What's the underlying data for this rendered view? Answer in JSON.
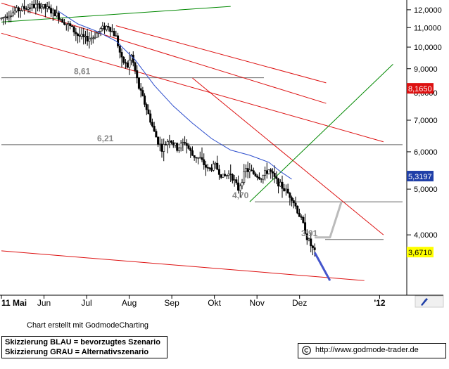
{
  "chart_data": {
    "type": "candlestick",
    "x_ticks": [
      "11 Mai",
      "Jun",
      "Jul",
      "Aug",
      "Sep",
      "Okt",
      "Nov",
      "Dez",
      "'12"
    ],
    "y_ticks": [
      "12,0000",
      "11,0000",
      "10,0000",
      "9,0000",
      "8,0000",
      "7,0000",
      "6,0000",
      "5,0000",
      "4,0000"
    ],
    "ylim": [
      3.0,
      12.5
    ],
    "y_scale": "log",
    "grid": false,
    "price_badges": [
      {
        "label": "8,1650",
        "value": 8.165,
        "color": "#dd1111",
        "text_color": "#ffffff"
      },
      {
        "label": "5,3197",
        "value": 5.3197,
        "color": "#1f3fa8",
        "text_color": "#ffffff"
      },
      {
        "label": "3,6710",
        "value": 3.671,
        "color": "#ffff00",
        "text_color": "#000000"
      }
    ],
    "horizontal_levels": [
      {
        "label": "8,61",
        "value": 8.61
      },
      {
        "label": "6,21",
        "value": 6.21
      },
      {
        "label": "4,70",
        "value": 4.7
      },
      {
        "label": "3,91",
        "value": 3.91
      }
    ],
    "series": [
      {
        "type": "candlestick",
        "points": [
          [
            0,
            11.5
          ],
          [
            4,
            11.75
          ],
          [
            8,
            11.95
          ],
          [
            12,
            12.1
          ],
          [
            16,
            12.2
          ],
          [
            20,
            12.25
          ],
          [
            24,
            12.05
          ],
          [
            28,
            11.8
          ],
          [
            32,
            11.4
          ],
          [
            36,
            11.05
          ],
          [
            40,
            10.6
          ],
          [
            44,
            10.4
          ],
          [
            48,
            10.5
          ],
          [
            52,
            10.9
          ],
          [
            56,
            11.1
          ],
          [
            60,
            10.5
          ],
          [
            63,
            9.4
          ],
          [
            66,
            9.1
          ],
          [
            68,
            9.6
          ],
          [
            70,
            8.9
          ],
          [
            72,
            8.2
          ],
          [
            74,
            7.8
          ],
          [
            76,
            7.4
          ],
          [
            78,
            7.0
          ],
          [
            80,
            6.6
          ],
          [
            82,
            6.3
          ],
          [
            84,
            6.1
          ],
          [
            88,
            6.4
          ],
          [
            92,
            6.1
          ],
          [
            96,
            6.3
          ],
          [
            100,
            5.9
          ],
          [
            104,
            5.8
          ],
          [
            108,
            5.5
          ],
          [
            112,
            5.6
          ],
          [
            116,
            5.3
          ],
          [
            120,
            5.4
          ],
          [
            124,
            5.0
          ],
          [
            128,
            5.5
          ],
          [
            132,
            5.4
          ],
          [
            136,
            5.3
          ],
          [
            140,
            5.5
          ],
          [
            144,
            5.2
          ],
          [
            148,
            5.0
          ],
          [
            152,
            4.8
          ],
          [
            154,
            4.6
          ],
          [
            156,
            4.4
          ],
          [
            158,
            4.2
          ],
          [
            160,
            3.95
          ],
          [
            162,
            3.8
          ],
          [
            164,
            3.67
          ]
        ]
      },
      {
        "name": "",
        "type": "line",
        "color": "#2b4ccc",
        "points": [
          [
            30,
            11.9
          ],
          [
            40,
            11.2
          ],
          [
            50,
            10.8
          ],
          [
            60,
            10.3
          ],
          [
            70,
            9.4
          ],
          [
            80,
            8.3
          ],
          [
            90,
            7.5
          ],
          [
            100,
            6.9
          ],
          [
            110,
            6.4
          ],
          [
            120,
            6.05
          ],
          [
            130,
            5.9
          ],
          [
            140,
            5.7
          ],
          [
            146,
            5.45
          ],
          [
            152,
            5.25
          ]
        ]
      }
    ],
    "trendlines": [
      {
        "color": "#008800",
        "points": [
          [
            0,
            11.3
          ],
          [
            120,
            12.2
          ]
        ]
      },
      {
        "color": "#dd1111",
        "points": [
          [
            0,
            12.4
          ],
          [
            170,
            7.6
          ]
        ]
      },
      {
        "color": "#dd1111",
        "points": [
          [
            60,
            11.1
          ],
          [
            170,
            8.4
          ]
        ]
      },
      {
        "color": "#dd1111",
        "points": [
          [
            0,
            10.7
          ],
          [
            200,
            6.3
          ]
        ]
      },
      {
        "color": "#dd1111",
        "points": [
          [
            100,
            8.6
          ],
          [
            200,
            4.0
          ]
        ]
      },
      {
        "color": "#dd1111",
        "points": [
          [
            0,
            3.7
          ],
          [
            190,
            3.2
          ]
        ]
      },
      {
        "color": "#008800",
        "points": [
          [
            130,
            4.7
          ],
          [
            205,
            9.2
          ]
        ]
      }
    ],
    "scenarios": [
      {
        "name": "Skizzierung BLAU = bevorzugtes Szenario",
        "color": "#4455cc",
        "points": [
          [
            164,
            3.67
          ],
          [
            172,
            3.2
          ]
        ]
      },
      {
        "name": "Skizzierung GRAU = Alternativszenario",
        "color": "#bbbbbb",
        "points": [
          [
            164,
            3.95
          ],
          [
            172,
            3.95
          ],
          [
            178,
            4.7
          ]
        ]
      }
    ]
  },
  "footer": {
    "credit": "Chart erstellt mit GodmodeCharting",
    "legend_blue": "Skizzierung BLAU = bevorzugtes Szenario",
    "legend_gray": "Skizzierung GRAU = Alternativszenario",
    "url": "http://www.godmode-trader.de"
  }
}
